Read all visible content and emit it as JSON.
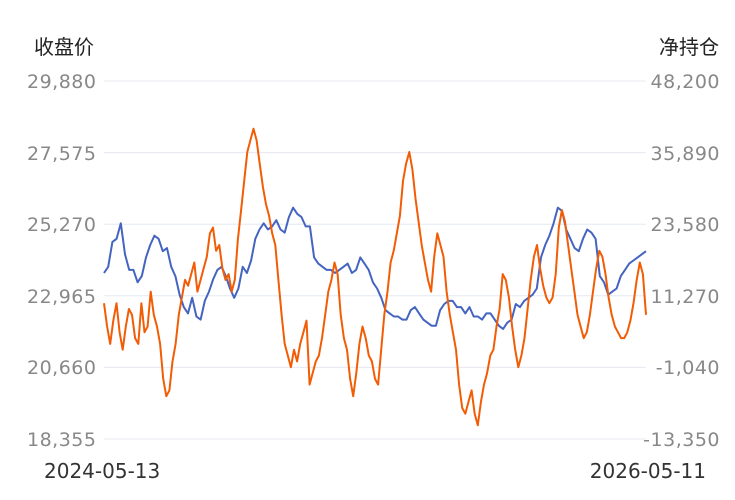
{
  "chart_data": {
    "type": "line",
    "ylabel_left": "收盘价",
    "ylabel_right": "净持仓",
    "left_ticks": [
      "29,880",
      "27,575",
      "25,270",
      "22,965",
      "20,660",
      "18,355"
    ],
    "right_ticks": [
      "48,200",
      "35,890",
      "23,580",
      "11,270",
      "-1,040",
      "-13,350"
    ],
    "left_ylim": [
      18355,
      29880
    ],
    "right_ylim": [
      -13350,
      48200
    ],
    "x_start_label": "2024-05-13",
    "x_end_label": "2026-05-11",
    "grid": true,
    "series": [
      {
        "axis": "left",
        "color": "#4464c0",
        "values": [
          23700,
          23900,
          24700,
          24800,
          25300,
          24300,
          23800,
          23800,
          23400,
          23600,
          24200,
          24600,
          24900,
          24800,
          24400,
          24500,
          23900,
          23600,
          23000,
          22600,
          22400,
          22900,
          22300,
          22200,
          22800,
          23100,
          23500,
          23800,
          23900,
          23600,
          23200,
          22900,
          23200,
          23900,
          23700,
          24100,
          24800,
          25100,
          25300,
          25100,
          25200,
          25400,
          25100,
          25000,
          25500,
          25800,
          25600,
          25500,
          25200,
          25200,
          24200,
          24000,
          23900,
          23800,
          23800,
          23700,
          23800,
          23900,
          24000,
          23700,
          23800,
          24200,
          24000,
          23800,
          23400,
          23200,
          22900,
          22500,
          22400,
          22300,
          22300,
          22200,
          22200,
          22500,
          22600,
          22400,
          22200,
          22100,
          22000,
          22000,
          22500,
          22700,
          22800,
          22800,
          22600,
          22600,
          22400,
          22600,
          22300,
          22300,
          22200,
          22400,
          22400,
          22200,
          22000,
          21900,
          22100,
          22200,
          22700,
          22600,
          22800,
          22900,
          23000,
          23200,
          24200,
          24600,
          24900,
          25300,
          25800,
          25700,
          25100,
          24800,
          24500,
          24400,
          24800,
          25100,
          25000,
          24800,
          23600,
          23400,
          23000,
          23100,
          23200,
          23600,
          23800,
          24000,
          24100,
          24200,
          24300,
          24400
        ]
      },
      {
        "axis": "right",
        "color": "#f25c05",
        "values": [
          10000,
          6000,
          3000,
          7000,
          10000,
          5000,
          2000,
          6000,
          9000,
          8000,
          4000,
          3000,
          10000,
          5000,
          6000,
          12000,
          8000,
          6000,
          3000,
          -3000,
          -6000,
          -5000,
          0,
          3000,
          8000,
          11000,
          14000,
          13000,
          15000,
          17000,
          12000,
          14000,
          16000,
          18000,
          22000,
          23000,
          19000,
          20000,
          16000,
          14000,
          15000,
          12000,
          14000,
          21000,
          26000,
          31000,
          36000,
          38000,
          40000,
          38000,
          34000,
          30000,
          27000,
          25000,
          22000,
          20000,
          14000,
          8000,
          3000,
          1000,
          -1000,
          2000,
          0,
          3000,
          5000,
          7000,
          -4000,
          -2000,
          0,
          1000,
          4000,
          8000,
          12000,
          14000,
          17000,
          15000,
          8000,
          4000,
          2000,
          -3000,
          -6000,
          -2000,
          3000,
          6000,
          4000,
          1000,
          0,
          -3000,
          -4000,
          2000,
          8000,
          12000,
          17000,
          19000,
          22000,
          25000,
          31000,
          34000,
          36000,
          33000,
          28000,
          24000,
          20000,
          17000,
          14000,
          12000,
          18000,
          22000,
          20000,
          18000,
          12000,
          8000,
          5000,
          2000,
          -4000,
          -8000,
          -9000,
          -7000,
          -5000,
          -9000,
          -11000,
          -7000,
          -4000,
          -2000,
          1000,
          2000,
          6000,
          9000,
          15000,
          14000,
          11000,
          6000,
          2000,
          -1000,
          1000,
          4000,
          9000,
          14000,
          18000,
          20000,
          16000,
          13000,
          11000,
          10000,
          11000,
          15000,
          23000,
          26000,
          24000,
          20000,
          16000,
          12000,
          8000,
          6000,
          4000,
          5000,
          8000,
          12000,
          16000,
          19000,
          18000,
          15000,
          11000,
          8000,
          6000,
          5000,
          4000,
          4000,
          5000,
          7000,
          10000,
          14000,
          17000,
          15000,
          8000
        ]
      }
    ]
  }
}
